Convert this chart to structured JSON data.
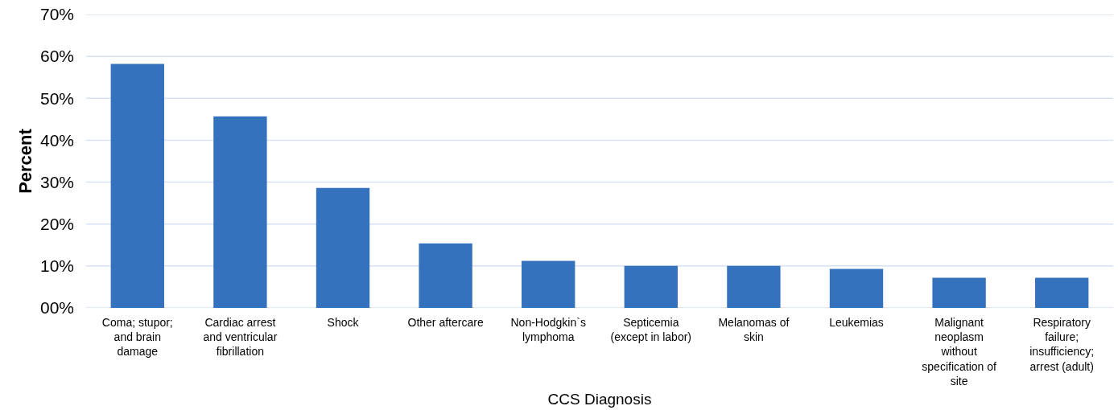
{
  "chart_data": {
    "type": "bar",
    "xlabel": "CCS Diagnosis",
    "ylabel": "Percent",
    "categories": [
      "Coma; stupor;\nand brain\ndamage",
      "Cardiac arrest\nand ventricular\nfibrillation",
      "Shock",
      "Other aftercare",
      "Non-Hodgkin`s\nlymphoma",
      "Septicemia\n(except in labor)",
      "Melanomas of\nskin",
      "Leukemias",
      "Malignant\nneoplasm\nwithout\nspecification of\nsite",
      "Respiratory\nfailure;\ninsufficiency;\narrest (adult)"
    ],
    "values": [
      58.2,
      45.7,
      28.6,
      15.4,
      11.2,
      10.0,
      10.0,
      9.3,
      7.2,
      7.2
    ],
    "color": "#3572bd",
    "ylim": [
      0,
      70
    ],
    "yticks": [
      {
        "value": 0,
        "label": "00%"
      },
      {
        "value": 10,
        "label": "10%"
      },
      {
        "value": 20,
        "label": "20%"
      },
      {
        "value": 30,
        "label": "30%"
      },
      {
        "value": 40,
        "label": "40%"
      },
      {
        "value": 50,
        "label": "50%"
      },
      {
        "value": 60,
        "label": "60%"
      },
      {
        "value": 70,
        "label": "70%"
      }
    ],
    "grid": "y"
  }
}
